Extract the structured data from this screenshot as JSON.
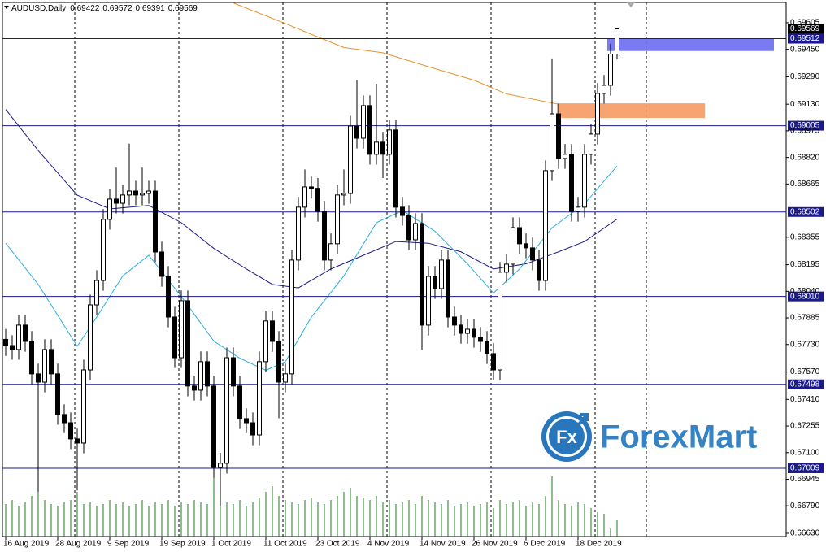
{
  "chart_data": {
    "type": "candlestick",
    "symbol": "AUDUSD,Daily",
    "categories": [
      "16 Aug 2019",
      null,
      null,
      null,
      null,
      null,
      null,
      null,
      "28 Aug 2019",
      null,
      null,
      null,
      null,
      null,
      null,
      null,
      "9 Sep 2019",
      null,
      null,
      null,
      null,
      null,
      null,
      null,
      "19 Sep 2019",
      null,
      null,
      null,
      null,
      null,
      null,
      null,
      "1 Oct 2019",
      null,
      null,
      null,
      null,
      null,
      null,
      null,
      "11 Oct 2019",
      null,
      null,
      null,
      null,
      null,
      null,
      null,
      "23 Oct 2019",
      null,
      null,
      null,
      null,
      null,
      null,
      null,
      "4 Nov 2019",
      null,
      null,
      null,
      null,
      null,
      null,
      null,
      "14 Nov 2019",
      null,
      null,
      null,
      null,
      null,
      null,
      null,
      "26 Nov 2019",
      null,
      null,
      null,
      null,
      null,
      null,
      null,
      "6 Dec 2019",
      null,
      null,
      null,
      null,
      null,
      null,
      null,
      "18 Dec 2019",
      null,
      null,
      null,
      null,
      null,
      null
    ],
    "open": [
      0.6776,
      0.67724,
      0.67701,
      0.67843,
      0.67748,
      0.67559,
      0.67511,
      0.67701,
      0.67559,
      0.67322,
      0.67274,
      0.6718,
      0.67156,
      0.67582,
      0.67961,
      0.68103,
      0.68459,
      0.68577,
      0.68553,
      0.68601,
      0.68624,
      0.68601,
      0.6861,
      0.68624,
      0.68269,
      0.68127,
      0.6789,
      0.67653,
      0.67985,
      0.67488,
      0.67464,
      0.6763,
      0.67488,
      0.67014,
      0.67038,
      0.67653,
      0.67488,
      0.67298,
      0.67274,
      0.67203,
      0.6763,
      0.67867,
      0.67748,
      0.67511,
      0.67559,
      0.68222,
      0.6853,
      0.68648,
      0.6864,
      0.68506,
      0.68222,
      0.68317,
      0.68601,
      0.6861,
      0.69003,
      0.68932,
      0.69122,
      0.68838,
      0.68909,
      0.68838,
      0.6898,
      0.6853,
      0.68482,
      0.6834,
      0.68435,
      0.67843,
      0.68127,
      0.68056,
      0.68222,
      0.6789,
      0.67843,
      0.67795,
      0.67819,
      0.67772,
      0.67748,
      0.67677,
      0.67582,
      0.68151,
      0.68198,
      0.68411,
      0.68317,
      0.68293,
      0.68222,
      0.68103,
      0.68743,
      0.69074,
      0.68814,
      0.68838,
      0.68506,
      0.6853,
      0.68838,
      0.68956,
      0.69193,
      0.6924,
      0.69422
    ],
    "high": [
      0.6782,
      0.67784,
      0.67903,
      0.67903,
      0.67808,
      0.67619,
      0.67761,
      0.67761,
      0.67619,
      0.67382,
      0.67334,
      0.6724,
      0.67642,
      0.68021,
      0.68163,
      0.68519,
      0.68637,
      0.6876,
      0.68661,
      0.689,
      0.68684,
      0.6876,
      0.68684,
      0.68684,
      0.68329,
      0.68187,
      0.6795,
      0.68045,
      0.68045,
      0.67548,
      0.6769,
      0.6769,
      0.67548,
      0.67098,
      0.67713,
      0.67713,
      0.67548,
      0.67358,
      0.67334,
      0.6769,
      0.67927,
      0.67927,
      0.67808,
      0.67619,
      0.68282,
      0.6859,
      0.6875,
      0.68708,
      0.687,
      0.68566,
      0.68377,
      0.68661,
      0.6875,
      0.69063,
      0.6927,
      0.69182,
      0.69182,
      0.6925,
      0.68969,
      0.6904,
      0.6904,
      0.6859,
      0.68542,
      0.68495,
      0.68495,
      0.68187,
      0.68187,
      0.68282,
      0.68282,
      0.6795,
      0.67903,
      0.67879,
      0.67879,
      0.67832,
      0.67808,
      0.67737,
      0.68211,
      0.68258,
      0.68471,
      0.68471,
      0.68377,
      0.68353,
      0.68282,
      0.68803,
      0.69397,
      0.69134,
      0.68898,
      0.68898,
      0.6859,
      0.68898,
      0.69016,
      0.69253,
      0.693,
      0.69482,
      0.69572
    ],
    "low": [
      0.67664,
      0.67641,
      0.67641,
      0.67688,
      0.67499,
      0.66872,
      0.67451,
      0.67499,
      0.67262,
      0.67214,
      0.6712,
      0.6688,
      0.67096,
      0.67522,
      0.67901,
      0.68043,
      0.68399,
      0.68493,
      0.68493,
      0.68541,
      0.68541,
      0.68541,
      0.6855,
      0.68209,
      0.68067,
      0.6783,
      0.67593,
      0.67593,
      0.67428,
      0.67404,
      0.67404,
      0.67428,
      0.66954,
      0.6679,
      0.66978,
      0.67428,
      0.67238,
      0.67214,
      0.67143,
      0.67143,
      0.6757,
      0.67688,
      0.673,
      0.67451,
      0.67499,
      0.68162,
      0.6847,
      0.6858,
      0.68446,
      0.68162,
      0.68162,
      0.68257,
      0.68541,
      0.6855,
      0.68872,
      0.68872,
      0.68778,
      0.68778,
      0.687,
      0.68778,
      0.6847,
      0.68422,
      0.6828,
      0.6828,
      0.677,
      0.67783,
      0.67996,
      0.67996,
      0.6783,
      0.67783,
      0.67735,
      0.67735,
      0.67712,
      0.67688,
      0.67617,
      0.67522,
      0.67522,
      0.68091,
      0.68138,
      0.68257,
      0.68233,
      0.68162,
      0.68043,
      0.68043,
      0.68683,
      0.68754,
      0.68754,
      0.68446,
      0.68446,
      0.6847,
      0.68778,
      0.68896,
      0.69133,
      0.6918,
      0.69391
    ],
    "close": [
      0.67724,
      0.67701,
      0.67843,
      0.67748,
      0.67559,
      0.67511,
      0.67701,
      0.67559,
      0.67322,
      0.67274,
      0.6718,
      0.67156,
      0.67582,
      0.67961,
      0.68103,
      0.68459,
      0.68577,
      0.68553,
      0.68601,
      0.68624,
      0.68601,
      0.6861,
      0.68624,
      0.68269,
      0.68127,
      0.6789,
      0.67653,
      0.67985,
      0.67488,
      0.67464,
      0.6763,
      0.67488,
      0.67014,
      0.67038,
      0.67653,
      0.67488,
      0.67298,
      0.67274,
      0.67203,
      0.6763,
      0.67867,
      0.67748,
      0.67511,
      0.67559,
      0.68222,
      0.6853,
      0.68648,
      0.6864,
      0.68506,
      0.68222,
      0.68317,
      0.68601,
      0.6861,
      0.69003,
      0.68932,
      0.69122,
      0.68838,
      0.68909,
      0.68838,
      0.6898,
      0.6853,
      0.68482,
      0.6834,
      0.68435,
      0.67843,
      0.68127,
      0.68056,
      0.68222,
      0.6789,
      0.67843,
      0.67795,
      0.67819,
      0.67772,
      0.67748,
      0.67677,
      0.67582,
      0.68151,
      0.68198,
      0.68411,
      0.68317,
      0.68293,
      0.68222,
      0.68103,
      0.68743,
      0.69074,
      0.68814,
      0.68838,
      0.68506,
      0.6853,
      0.68838,
      0.68956,
      0.69193,
      0.6924,
      0.69422,
      0.69569
    ],
    "volume": [
      40,
      45,
      38,
      42,
      50,
      60,
      45,
      40,
      38,
      42,
      45,
      55,
      40,
      42,
      38,
      40,
      45,
      40,
      42,
      38,
      40,
      45,
      38,
      42,
      40,
      45,
      38,
      42,
      40,
      45,
      42,
      40,
      80,
      50,
      42,
      40,
      45,
      38,
      42,
      48,
      55,
      62,
      50,
      45,
      42,
      40,
      45,
      48,
      42,
      40,
      45,
      50,
      55,
      60,
      50,
      48,
      45,
      50,
      42,
      45,
      40,
      42,
      45,
      40,
      50,
      45,
      42,
      40,
      45,
      38,
      40,
      42,
      38,
      40,
      42,
      35,
      45,
      40,
      42,
      45,
      38,
      42,
      40,
      50,
      74,
      45,
      40,
      38,
      42,
      40,
      35,
      30,
      28,
      10,
      20
    ],
    "volume_color": "#1e7b1e",
    "series": [
      {
        "color": "#e8922e",
        "x": [
          35,
          43,
          52,
          58,
          64,
          72,
          77,
          85
        ],
        "values": [
          0.6972,
          0.696,
          0.6946,
          0.6943,
          0.6936,
          0.6927,
          0.6919,
          0.6913
        ]
      },
      {
        "color": "#1a1a8c",
        "x": [
          0,
          5,
          11,
          16,
          22,
          27,
          32,
          37,
          41,
          45,
          50,
          55,
          60,
          65,
          70,
          75,
          80,
          85,
          89,
          94
        ],
        "values": [
          0.691,
          0.6886,
          0.686,
          0.6852,
          0.6854,
          0.6844,
          0.6829,
          0.6817,
          0.6808,
          0.6806,
          0.6817,
          0.6825,
          0.6833,
          0.6832,
          0.6827,
          0.6817,
          0.682,
          0.6827,
          0.6833,
          0.6846
        ]
      },
      {
        "color": "#29aee0",
        "x": [
          0,
          5,
          11,
          14,
          18,
          22,
          27,
          32,
          36,
          40,
          43,
          47,
          52,
          57,
          61,
          66,
          71,
          75,
          79,
          84,
          89,
          94
        ],
        "values": [
          0.6832,
          0.6808,
          0.6772,
          0.6789,
          0.6813,
          0.6825,
          0.6801,
          0.6775,
          0.6765,
          0.6758,
          0.6763,
          0.6789,
          0.6813,
          0.6844,
          0.6851,
          0.6839,
          0.682,
          0.6803,
          0.6817,
          0.6841,
          0.6855,
          0.6877
        ]
      }
    ],
    "levels": [
      0.69512,
      0.69005,
      0.68502,
      {
        "value": 0.6801,
        "label": "0.68010"
      },
      0.67498,
      0.67009
    ],
    "level_color": "#1a1a8c",
    "zones": [
      {
        "color": "#6b6cf2",
        "top": 0.69512,
        "bottom": 0.6944
      },
      {
        "color": "#f79a63",
        "top": 0.69135,
        "bottom": 0.6905
      }
    ],
    "ylim": [
      0.66611,
      0.69723
    ],
    "yticks": [
      0.69605,
      {
        "value": 0.6945,
        "label": "0.69450"
      },
      {
        "value": 0.6929,
        "label": "0.69290"
      },
      {
        "value": 0.6913,
        "label": "0.69130"
      },
      0.68975,
      {
        "value": 0.6882,
        "label": "0.68820"
      },
      0.68665,
      0.68355,
      0.68195,
      {
        "value": 0.6804,
        "label": "0.68040"
      },
      0.67885,
      {
        "value": 0.6773,
        "label": "0.67730"
      },
      {
        "value": 0.6757,
        "label": "0.67570"
      },
      {
        "value": 0.6741,
        "label": "0.67410"
      },
      0.67255,
      {
        "value": 0.671,
        "label": "0.67100"
      },
      0.66945,
      {
        "value": 0.6679,
        "label": "0.66790"
      },
      {
        "value": 0.6663,
        "label": "0.66630"
      }
    ],
    "watermark": "ForexMart",
    "watermark_icon": "Fx"
  }
}
